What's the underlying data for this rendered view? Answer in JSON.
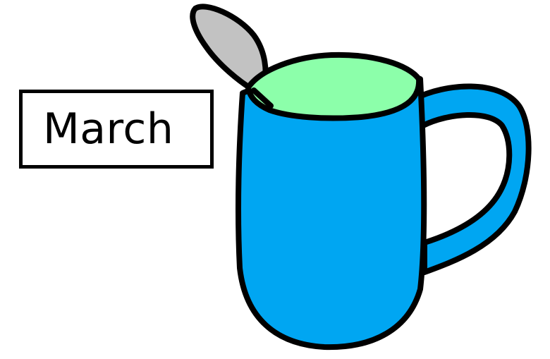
{
  "label": {
    "text": "March"
  },
  "colors": {
    "mug_body": "#00A6F2",
    "drink": "#8CFFAA",
    "spoon": "#C2C2C2",
    "outline": "#000000",
    "background": "#FFFFFF"
  },
  "illustration": {
    "subject": "mug-with-spoon"
  }
}
